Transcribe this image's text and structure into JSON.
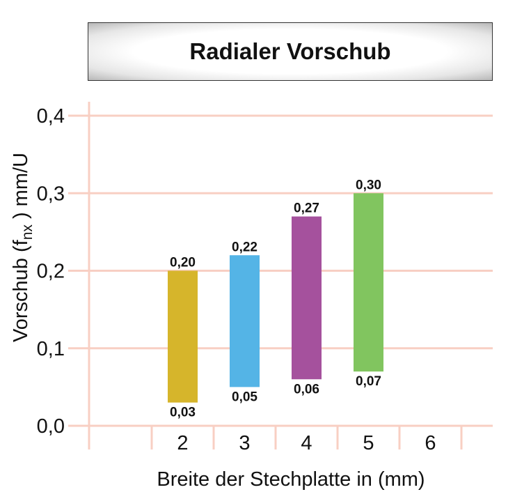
{
  "chart_data": {
    "type": "bar",
    "title": "Radialer Vorschub",
    "xlabel": "Breite der Stechplatte in (mm)",
    "ylabel": {
      "prefix": "Vorschub (f",
      "subscript": "nx",
      "suffix": " ) mm/U"
    },
    "ylim": [
      0,
      0.4
    ],
    "yticks": [
      "0,0",
      "0,1",
      "0,2",
      "0,3",
      "0,4"
    ],
    "ytick_values": [
      0,
      0.1,
      0.2,
      0.3,
      0.4
    ],
    "categories": [
      "2",
      "3",
      "4",
      "5",
      "6"
    ],
    "series": [
      {
        "low": [
          0.03,
          0.05,
          0.06,
          0.07,
          null
        ],
        "high": [
          0.2,
          0.22,
          0.27,
          0.3,
          null
        ],
        "low_labels": [
          "0,03",
          "0,05",
          "0,06",
          "0,07",
          ""
        ],
        "high_labels": [
          "0,20",
          "0,22",
          "0,27",
          "0,30",
          ""
        ],
        "colors": [
          "#D6B52B",
          "#54B4E6",
          "#A5519D",
          "#81C55F",
          ""
        ]
      }
    ],
    "grid": true,
    "grid_color": "#F8CFC3"
  }
}
